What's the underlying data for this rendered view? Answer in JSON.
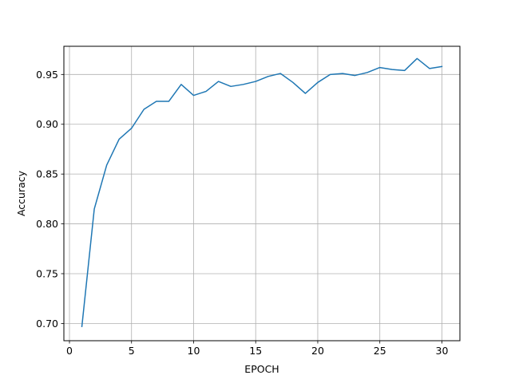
{
  "chart_data": {
    "type": "line",
    "title": "",
    "xlabel": "EPOCH",
    "ylabel": "Accuracy",
    "xlim": [
      -0.45,
      31.45
    ],
    "ylim": [
      0.6827,
      0.9783
    ],
    "x_ticks": [
      0,
      5,
      10,
      15,
      20,
      25,
      30
    ],
    "y_ticks": [
      0.7,
      0.75,
      0.8,
      0.85,
      0.9,
      0.95
    ],
    "x_tick_labels": [
      "0",
      "5",
      "10",
      "15",
      "20",
      "25",
      "30"
    ],
    "y_tick_labels": [
      "0.70",
      "0.75",
      "0.80",
      "0.85",
      "0.90",
      "0.95"
    ],
    "grid": true,
    "line_color": "#1f77b4",
    "series": [
      {
        "x": [
          1,
          2,
          3,
          4,
          5,
          6,
          7,
          8,
          9,
          10,
          11,
          12,
          13,
          14,
          15,
          16,
          17,
          18,
          19,
          20,
          21,
          22,
          23,
          24,
          25,
          26,
          27,
          28,
          29,
          30
        ],
        "values": [
          0.697,
          0.815,
          0.859,
          0.885,
          0.896,
          0.915,
          0.923,
          0.923,
          0.94,
          0.929,
          0.933,
          0.943,
          0.938,
          0.94,
          0.943,
          0.948,
          0.951,
          0.942,
          0.931,
          0.942,
          0.95,
          0.951,
          0.949,
          0.952,
          0.957,
          0.955,
          0.954,
          0.966,
          0.956,
          0.958
        ]
      }
    ]
  }
}
